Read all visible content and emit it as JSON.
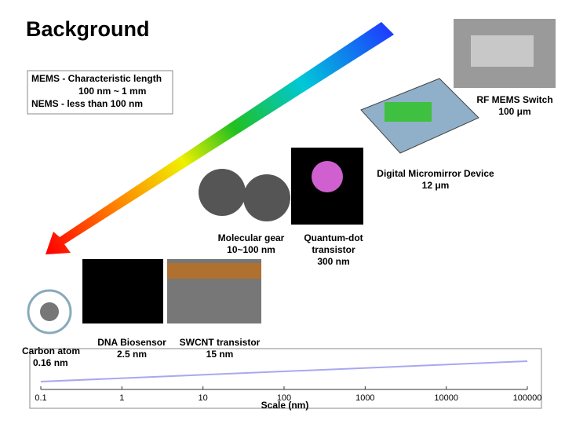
{
  "title": "Background",
  "definition_box": {
    "lines": [
      "MEMS - Characteristic length",
      "100 nm ~ 1 mm",
      "NEMS -  less than 100 nm"
    ]
  },
  "items": [
    {
      "lines": [
        "RF MEMS Switch",
        "100 μm"
      ]
    },
    {
      "lines": [
        "Digital Micromirror Device",
        "12 μm"
      ]
    },
    {
      "lines": [
        "Quantum-dot",
        "transistor",
        "300 nm"
      ]
    },
    {
      "lines": [
        "Molecular gear",
        "10~100 nm"
      ]
    },
    {
      "lines": [
        "Carbon atom",
        "0.16 nm"
      ]
    },
    {
      "lines": [
        "DNA Biosensor",
        "2.5 nm"
      ]
    },
    {
      "lines": [
        "SWCNT transistor",
        "15  nm"
      ]
    }
  ],
  "scale_axis": {
    "label": "Scale (nm)",
    "log_scale": true,
    "xlim": [
      0.1,
      100000
    ],
    "xticks": [
      0.1,
      1,
      10,
      100,
      1000,
      10000,
      100000
    ]
  }
}
